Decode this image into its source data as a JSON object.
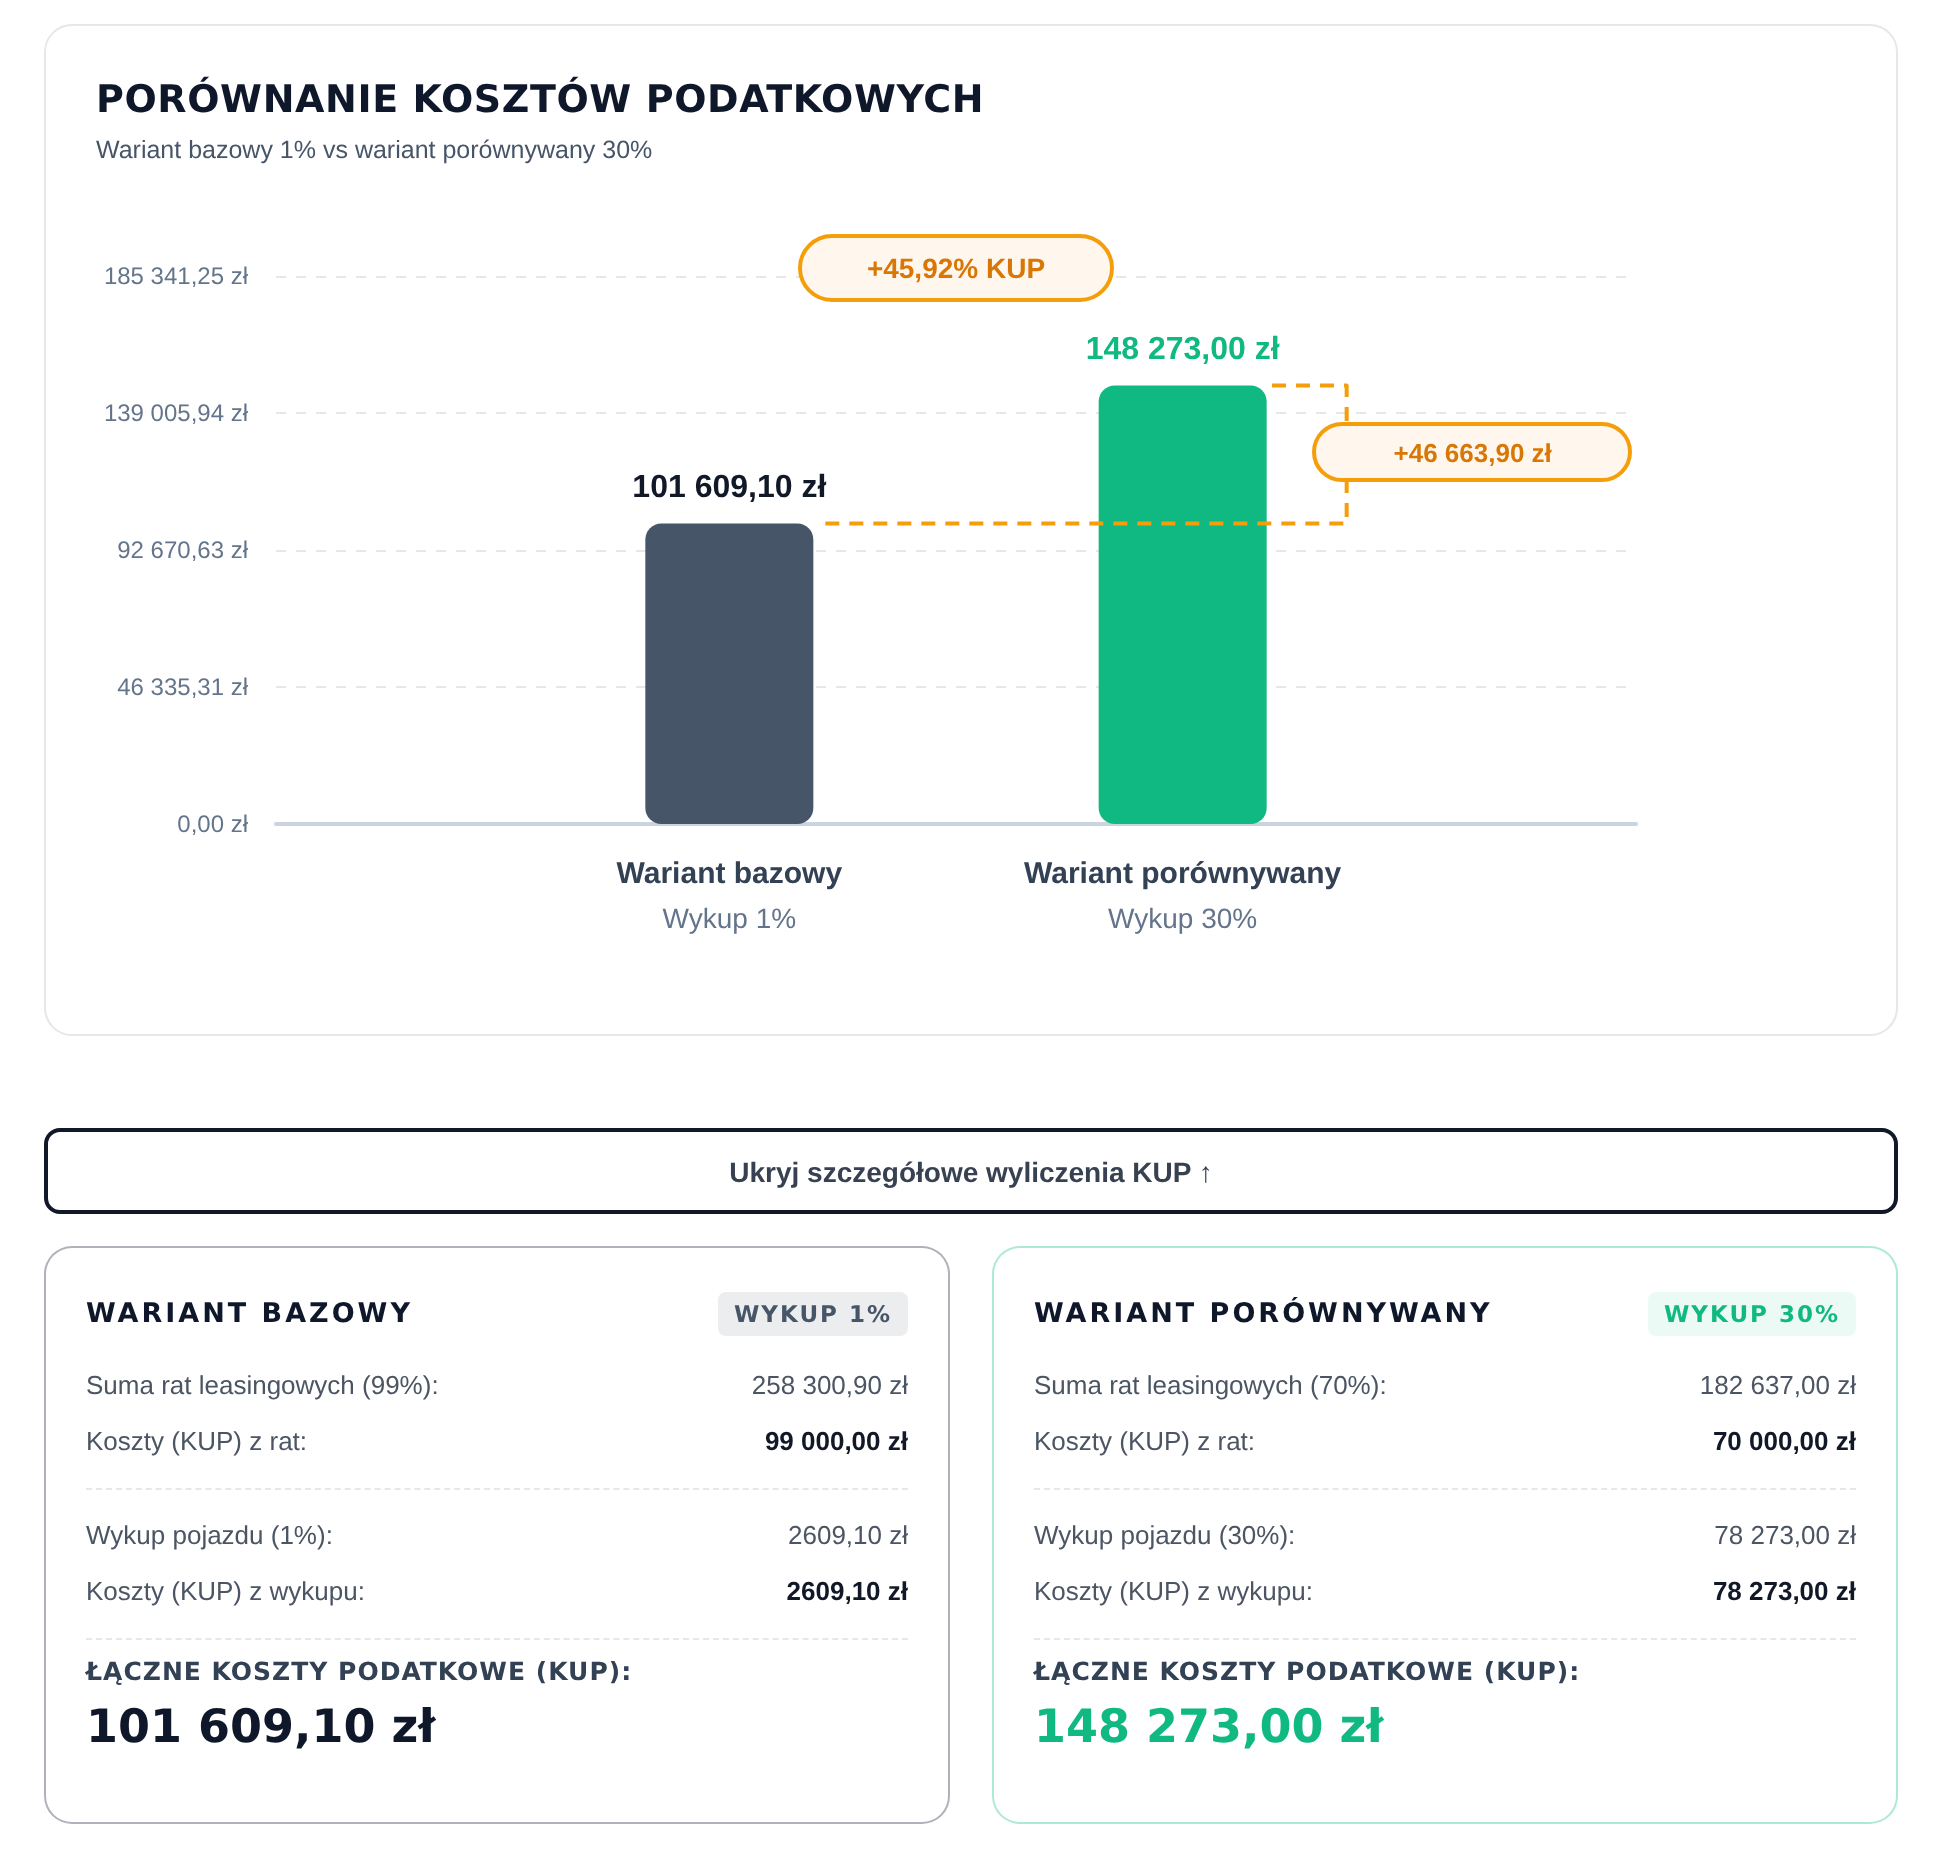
{
  "chart_data": [
    {
      "type": "bar",
      "title": "PORÓWNANIE KOSZTÓW PODATKOWYCH",
      "subtitle": "Wariant bazowy 1% vs wariant porównywany 30%",
      "categories": [
        "Wariant bazowy\nWykup 1%",
        "Wariant porównywany\nWykup 30%"
      ],
      "values": [
        101609.1,
        148273.0
      ],
      "colors": [
        "#475569",
        "#10b981"
      ],
      "value_labels": [
        "101 609,10 zł",
        "148 273,00 zł"
      ],
      "ylim": [
        0,
        185341.25
      ],
      "yticks": [
        {
          "value": 0,
          "label": "0,00 zł"
        },
        {
          "value": 46335.31,
          "label": "46 335,31 zł"
        },
        {
          "value": 92670.63,
          "label": "92 670,63 zł"
        },
        {
          "value": 139005.94,
          "label": "139 005,94 zł"
        },
        {
          "value": 185341.25,
          "label": "185 341,25 zł"
        }
      ],
      "grid": "y",
      "annotations": [
        "+45,92% KUP",
        "+46 663,90 zł"
      ]
    },
    {
      "type": "other",
      "annotations": [
        "Ukryj szczegółowe wyliczenia KUP ↑"
      ]
    },
    {
      "type": "other",
      "title": "WARIANT BAZOWY",
      "subtitle": "WYKUP 1%",
      "color": "#0f172a",
      "annotations": [
        "Suma rat leasingowych (99%):",
        "258 300,90 zł",
        "Koszty (KUP) z rat:",
        "99 000,00 zł",
        "Wykup pojazdu (1%):",
        "2609,10 zł",
        "Koszty (KUP) z wykupu:",
        "2609,10 zł",
        "ŁĄCZNE KOSZTY PODATKOWE (KUP):",
        "101 609,10 zł"
      ]
    },
    {
      "type": "other",
      "title": "WARIANT PORÓWNYWANY",
      "subtitle": "WYKUP 30%",
      "color": "#10b981",
      "annotations": [
        "Suma rat leasingowych (70%):",
        "182 637,00 zł",
        "Koszty (KUP) z rat:",
        "70 000,00 zł",
        "Wykup pojazdu (30%):",
        "78 273,00 zł",
        "Koszty (KUP) z wykupu:",
        "78 273,00 zł",
        "ŁĄCZNE KOSZTY PODATKOWE (KUP):",
        "148 273,00 zł"
      ]
    }
  ]
}
